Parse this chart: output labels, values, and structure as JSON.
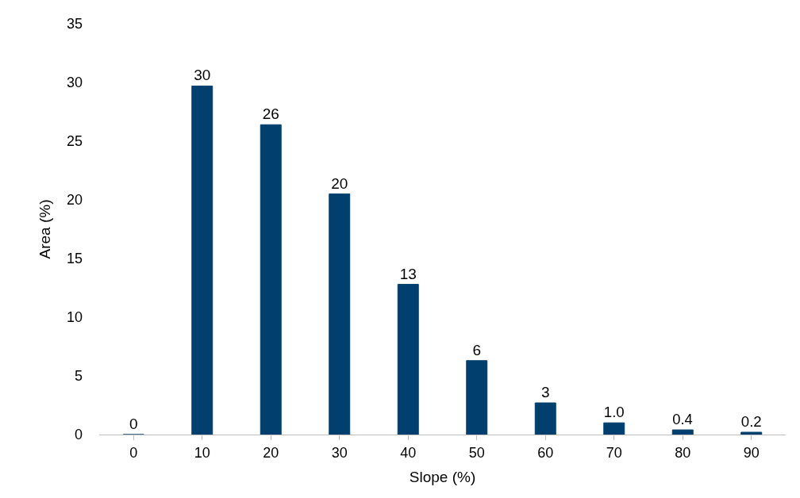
{
  "chart_data": {
    "type": "bar",
    "xlabel": "Slope (%)",
    "ylabel": "Area (%)",
    "categories": [
      "0",
      "10",
      "20",
      "30",
      "40",
      "50",
      "60",
      "70",
      "80",
      "90"
    ],
    "values": [
      0,
      29.7,
      26.4,
      20.5,
      12.8,
      6.3,
      2.7,
      1.0,
      0.4,
      0.2
    ],
    "value_labels": [
      "0",
      "30",
      "26",
      "20",
      "13",
      "6",
      "3",
      "1.0",
      "0.4",
      "0.2"
    ],
    "color": "#003f6e",
    "ylim": [
      0,
      35
    ],
    "yticks": [
      0,
      5,
      10,
      15,
      20,
      25,
      30,
      35
    ],
    "grid": false,
    "legend": false
  }
}
